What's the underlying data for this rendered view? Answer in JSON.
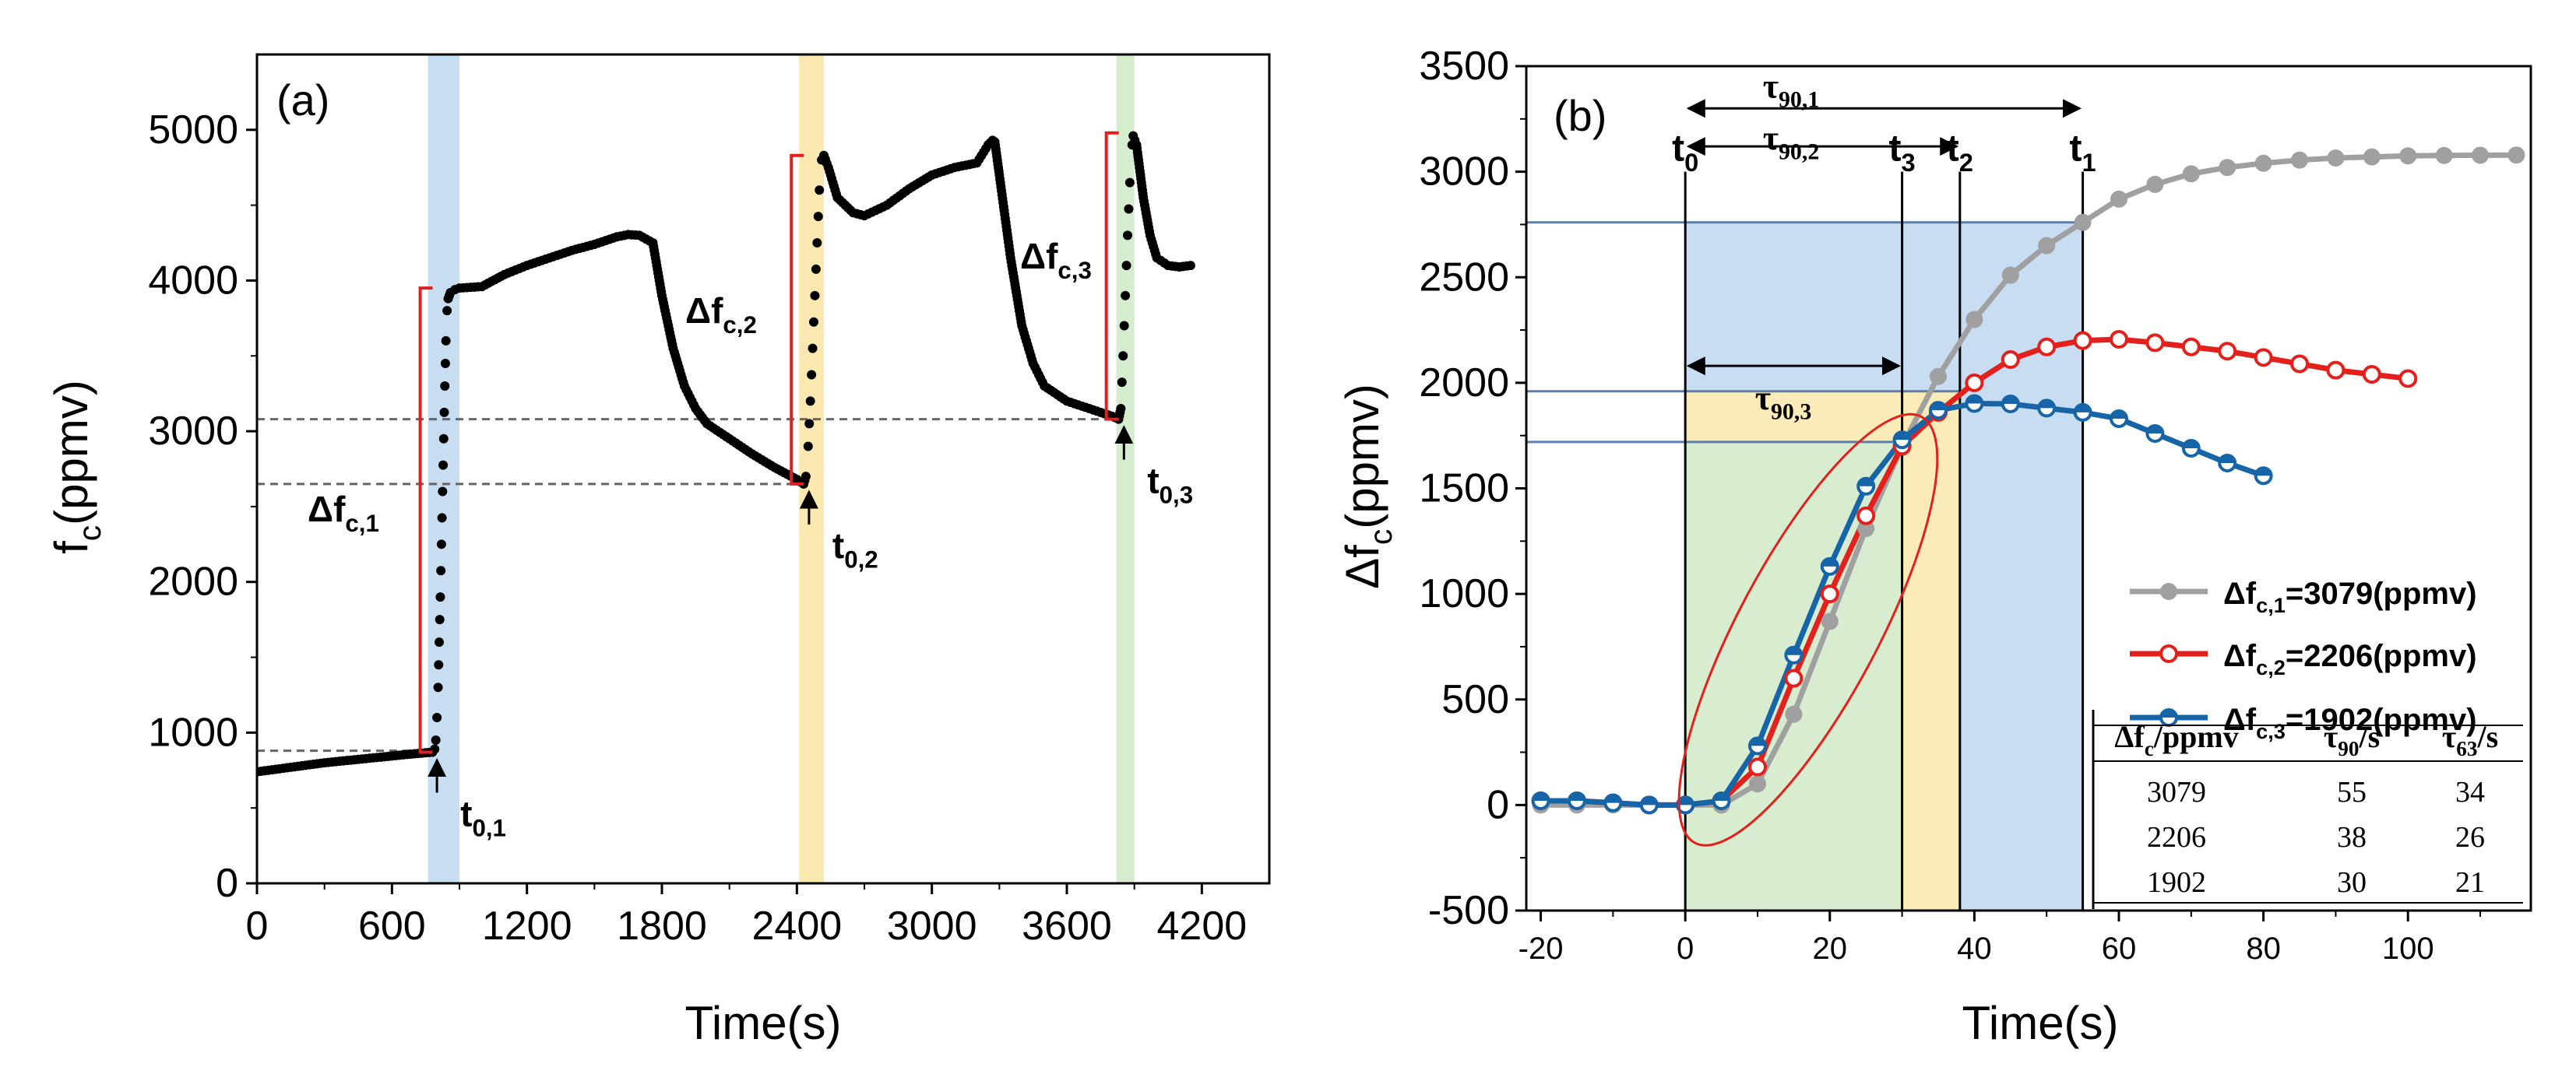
{
  "chart_data": [
    {
      "panel": "(a)",
      "type": "scatter",
      "xlabel": "Time(s)",
      "ylabel": "f",
      "ylabel_sub": "c",
      "ylabel_unit": "(ppmv)",
      "xlim": [
        0,
        4500
      ],
      "ylim": [
        0,
        5500
      ],
      "xticks": [
        0,
        600,
        1200,
        1800,
        2400,
        3000,
        3600,
        4200
      ],
      "yticks": [
        0,
        1000,
        2000,
        3000,
        4000,
        5000
      ],
      "series": [
        {
          "name": "fc",
          "points": [
            [
              0,
              740
            ],
            [
              100,
              760
            ],
            [
              200,
              780
            ],
            [
              300,
              800
            ],
            [
              400,
              815
            ],
            [
              500,
              830
            ],
            [
              600,
              845
            ],
            [
              700,
              860
            ],
            [
              780,
              870
            ],
            [
              790,
              890
            ],
            [
              795,
              950
            ],
            [
              800,
              1100
            ],
            [
              805,
              1300
            ],
            [
              810,
              1600
            ],
            [
              815,
              1900
            ],
            [
              820,
              2250
            ],
            [
              825,
              2600
            ],
            [
              830,
              2950
            ],
            [
              835,
              3300
            ],
            [
              840,
              3600
            ],
            [
              845,
              3800
            ],
            [
              850,
              3880
            ],
            [
              860,
              3920
            ],
            [
              880,
              3940
            ],
            [
              900,
              3950
            ],
            [
              1000,
              3960
            ],
            [
              1100,
              4040
            ],
            [
              1200,
              4100
            ],
            [
              1300,
              4150
            ],
            [
              1400,
              4200
            ],
            [
              1500,
              4240
            ],
            [
              1600,
              4290
            ],
            [
              1650,
              4305
            ],
            [
              1700,
              4300
            ],
            [
              1760,
              4250
            ],
            [
              1800,
              3900
            ],
            [
              1850,
              3550
            ],
            [
              1900,
              3300
            ],
            [
              1950,
              3150
            ],
            [
              2000,
              3050
            ],
            [
              2100,
              2950
            ],
            [
              2200,
              2850
            ],
            [
              2300,
              2760
            ],
            [
              2400,
              2680
            ],
            [
              2430,
              2650
            ],
            [
              2440,
              2700
            ],
            [
              2450,
              2900
            ],
            [
              2460,
              3200
            ],
            [
              2470,
              3550
            ],
            [
              2480,
              3900
            ],
            [
              2490,
              4250
            ],
            [
              2500,
              4600
            ],
            [
              2510,
              4800
            ],
            [
              2520,
              4830
            ],
            [
              2540,
              4750
            ],
            [
              2580,
              4550
            ],
            [
              2650,
              4450
            ],
            [
              2700,
              4430
            ],
            [
              2800,
              4500
            ],
            [
              2900,
              4610
            ],
            [
              3000,
              4700
            ],
            [
              3100,
              4750
            ],
            [
              3200,
              4780
            ],
            [
              3250,
              4900
            ],
            [
              3270,
              4930
            ],
            [
              3280,
              4920
            ],
            [
              3300,
              4700
            ],
            [
              3350,
              4150
            ],
            [
              3400,
              3700
            ],
            [
              3450,
              3450
            ],
            [
              3500,
              3300
            ],
            [
              3600,
              3200
            ],
            [
              3700,
              3150
            ],
            [
              3800,
              3100
            ],
            [
              3830,
              3080
            ],
            [
              3840,
              3150
            ],
            [
              3850,
              3500
            ],
            [
              3860,
              3900
            ],
            [
              3870,
              4300
            ],
            [
              3880,
              4650
            ],
            [
              3890,
              4900
            ],
            [
              3895,
              4960
            ],
            [
              3910,
              4900
            ],
            [
              3940,
              4550
            ],
            [
              3970,
              4300
            ],
            [
              4000,
              4150
            ],
            [
              4050,
              4100
            ],
            [
              4100,
              4090
            ],
            [
              4150,
              4100
            ]
          ]
        }
      ],
      "dashed_levels": [
        {
          "value": 880,
          "x_end": 780
        },
        {
          "value": 2650,
          "x_end": 2430
        },
        {
          "value": 3080,
          "x_end": 3830
        }
      ],
      "highlight_bands": [
        {
          "x0": 760,
          "x1": 900,
          "color": "#c7ddf2"
        },
        {
          "x0": 2410,
          "x1": 2520,
          "color": "#fbe8b0"
        },
        {
          "x0": 3820,
          "x1": 3900,
          "color": "#d5ecce"
        }
      ],
      "brackets": [
        {
          "x": 760,
          "y0": 870,
          "y1": 3950,
          "label": "Δf",
          "label_sub": "c,1"
        },
        {
          "x": 2410,
          "y0": 2650,
          "y1": 4830,
          "label": "Δf",
          "label_sub": "c,2"
        },
        {
          "x": 3810,
          "y0": 3080,
          "y1": 4980,
          "label": "Δf",
          "label_sub": "c,3"
        }
      ],
      "markers": [
        {
          "x": 800,
          "y": 870,
          "label": "t",
          "label_sub": "0,1"
        },
        {
          "x": 2440,
          "y": 2650,
          "label": "t",
          "label_sub": "0,2"
        },
        {
          "x": 3840,
          "y": 3080,
          "label": "t",
          "label_sub": "0,3"
        }
      ],
      "colors": {
        "points": "#000000",
        "bracket": "#e0201e",
        "dashed": "#666666"
      }
    },
    {
      "panel": "(b)",
      "type": "line",
      "xlabel": "Time(s)",
      "ylabel": "Δf",
      "ylabel_sub": "c",
      "ylabel_unit": "(ppmv)",
      "xlim": [
        -22,
        117
      ],
      "ylim": [
        -500,
        3500
      ],
      "xticks": [
        -20,
        0,
        20,
        40,
        60,
        80,
        100
      ],
      "yticks": [
        -500,
        0,
        500,
        1000,
        1500,
        2000,
        2500,
        3000,
        3500
      ],
      "series": [
        {
          "name": "Δf",
          "name_sub": "c,1",
          "value_label": "=3079(ppmv)",
          "color": "#a0a0a0",
          "marker": "filled",
          "x": [
            -20,
            -15,
            -10,
            -5,
            0,
            5,
            10,
            15,
            20,
            25,
            30,
            35,
            40,
            45,
            50,
            55,
            60,
            65,
            70,
            75,
            80,
            85,
            90,
            95,
            100,
            105,
            110,
            115
          ],
          "y": [
            0,
            0,
            0,
            0,
            0,
            0,
            100,
            430,
            870,
            1310,
            1700,
            2030,
            2300,
            2510,
            2650,
            2760,
            2870,
            2940,
            2990,
            3020,
            3040,
            3055,
            3065,
            3070,
            3075,
            3077,
            3078,
            3079
          ]
        },
        {
          "name": "Δf",
          "name_sub": "c,2",
          "value_label": "=2206(ppmv)",
          "color": "#e3201b",
          "marker": "open",
          "x": [
            -20,
            -15,
            -10,
            -5,
            0,
            5,
            10,
            15,
            20,
            25,
            30,
            35,
            40,
            45,
            50,
            55,
            60,
            65,
            70,
            75,
            80,
            85,
            90,
            95,
            100
          ],
          "y": [
            20,
            20,
            10,
            0,
            0,
            20,
            180,
            600,
            1000,
            1370,
            1700,
            1860,
            2000,
            2110,
            2170,
            2200,
            2206,
            2190,
            2170,
            2150,
            2120,
            2090,
            2060,
            2040,
            2020
          ]
        },
        {
          "name": "Δf",
          "name_sub": "c,3",
          "value_label": "=1902(ppmv)",
          "color": "#1565a8",
          "marker": "half",
          "x": [
            -20,
            -15,
            -10,
            -5,
            0,
            5,
            10,
            15,
            20,
            25,
            30,
            35,
            40,
            45,
            50,
            55,
            60,
            65,
            70,
            75,
            80
          ],
          "y": [
            20,
            20,
            10,
            0,
            0,
            20,
            280,
            710,
            1130,
            1510,
            1730,
            1870,
            1902,
            1900,
            1880,
            1860,
            1830,
            1760,
            1690,
            1620,
            1560
          ]
        }
      ],
      "shaded_regions": [
        {
          "x0": 0,
          "x1": 30,
          "y_top": 1720,
          "color": "#d8ecd0"
        },
        {
          "x0": 0,
          "x1": 38,
          "y_top": 1960,
          "color": "#fbebb8",
          "under": 1720
        },
        {
          "x0": 0,
          "x1": 55,
          "y_top": 2760,
          "color": "#c8ddf2",
          "under": 1960
        }
      ],
      "reference_lines": {
        "horizontal": [
          1720,
          1960,
          2760
        ],
        "vertical": [
          {
            "x": 0,
            "label": "t",
            "label_sub": "0"
          },
          {
            "x": 30,
            "label": "t",
            "label_sub": "3"
          },
          {
            "x": 38,
            "label": "t",
            "label_sub": "2"
          },
          {
            "x": 55,
            "label": "t",
            "label_sub": "1"
          }
        ]
      },
      "arrows": [
        {
          "x0": 0,
          "x1": 55,
          "y": 3300,
          "label": "τ",
          "label_sub": "90,1"
        },
        {
          "x0": 0,
          "x1": 38,
          "y": 3120,
          "label": "τ",
          "label_sub": "90,2"
        },
        {
          "x0": 0,
          "x1": 30,
          "y": 2080,
          "label": "τ",
          "label_sub": "90,3"
        }
      ],
      "ellipse": {
        "cx": 17,
        "cy": 830,
        "note": "rising region highlight"
      },
      "table": {
        "headers": [
          "Δf",
          "τ",
          "τ"
        ],
        "header_subs": [
          "c",
          "90",
          "63"
        ],
        "header_units": [
          "/ppmv",
          "/s",
          "/s"
        ],
        "rows": [
          [
            "3079",
            "55",
            "34"
          ],
          [
            "2206",
            "38",
            "26"
          ],
          [
            "1902",
            "30",
            "21"
          ]
        ]
      }
    }
  ]
}
